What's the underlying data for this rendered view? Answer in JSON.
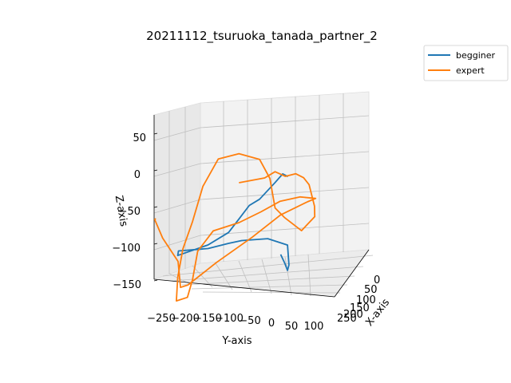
{
  "chart_data": {
    "type": "line",
    "projection": "3d",
    "title": "20211112_tsuruoka_tanada_partner_2",
    "xlabel": "X-axis",
    "ylabel": "Y-axis",
    "zlabel": "Z-axis",
    "x_ticks": [
      "0",
      "50",
      "100",
      "150",
      "200",
      "250"
    ],
    "y_ticks": [
      "−250",
      "−200",
      "−150",
      "−100",
      "−50",
      "0",
      "50",
      "100"
    ],
    "z_ticks": [
      "50",
      "0",
      "−50",
      "−100",
      "−150"
    ],
    "xlim": [
      0,
      250
    ],
    "ylim": [
      -250,
      100
    ],
    "zlim": [
      -150,
      70
    ],
    "grid": true,
    "legend_position": "outside top-right",
    "series": [
      {
        "name": "begginer",
        "color": "#1f77b4",
        "points": [
          [
            60,
            5,
            -80
          ],
          [
            90,
            5,
            -100
          ],
          [
            110,
            5,
            -115
          ],
          [
            120,
            5,
            -110
          ],
          [
            110,
            5,
            -80
          ],
          [
            60,
            -20,
            -60
          ],
          [
            20,
            -60,
            -55
          ],
          [
            0,
            -80,
            -55
          ],
          [
            0,
            -120,
            -65
          ],
          [
            10,
            -180,
            -75
          ],
          [
            5,
            -180,
            -80
          ],
          [
            0,
            -120,
            -60
          ],
          [
            0,
            -80,
            -40
          ],
          [
            0,
            -60,
            -20
          ],
          [
            0,
            -40,
            0
          ],
          [
            0,
            -20,
            10
          ],
          [
            0,
            10,
            35
          ],
          [
            0,
            25,
            48
          ],
          [
            0,
            35,
            45
          ]
        ]
      },
      {
        "name": "expert",
        "color": "#ff7f0e",
        "points": [
          [
            0,
            -60,
            30
          ],
          [
            0,
            -10,
            40
          ],
          [
            0,
            10,
            50
          ],
          [
            0,
            30,
            45
          ],
          [
            0,
            50,
            50
          ],
          [
            20,
            60,
            40
          ],
          [
            60,
            60,
            20
          ],
          [
            100,
            60,
            -20
          ],
          [
            120,
            55,
            -40
          ],
          [
            80,
            40,
            -50
          ],
          [
            30,
            20,
            -20
          ],
          [
            0,
            10,
            0
          ],
          [
            0,
            0,
            40
          ],
          [
            0,
            -20,
            65
          ],
          [
            0,
            -60,
            70
          ],
          [
            0,
            -100,
            60
          ],
          [
            0,
            -130,
            20
          ],
          [
            0,
            -150,
            -30
          ],
          [
            5,
            -170,
            -70
          ],
          [
            5,
            -180,
            -110
          ],
          [
            -5,
            -180,
            -140
          ],
          [
            0,
            -160,
            -135
          ],
          [
            0,
            -150,
            -110
          ],
          [
            0,
            -140,
            -70
          ],
          [
            0,
            -110,
            -40
          ],
          [
            0,
            -60,
            -25
          ],
          [
            10,
            -20,
            -10
          ],
          [
            0,
            20,
            10
          ],
          [
            -5,
            60,
            20
          ],
          [
            -5,
            90,
            20
          ],
          [
            10,
            70,
            10
          ],
          [
            40,
            10,
            -20
          ],
          [
            60,
            -50,
            -60
          ],
          [
            60,
            -120,
            -100
          ],
          [
            80,
            -180,
            -140
          ],
          [
            100,
            -200,
            -150
          ],
          [
            120,
            -210,
            -120
          ],
          [
            120,
            -240,
            -90
          ],
          [
            100,
            -250,
            -60
          ],
          [
            70,
            -240,
            -50
          ]
        ]
      }
    ]
  }
}
